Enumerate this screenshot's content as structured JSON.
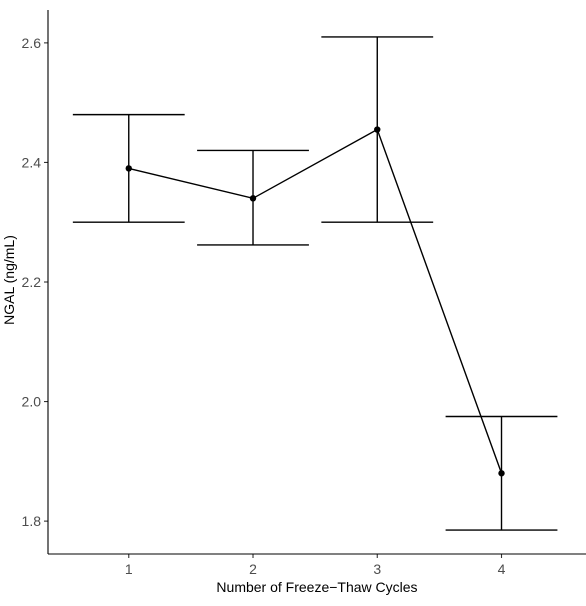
{
  "chart_data": {
    "type": "line",
    "xlabel": "Number of Freeze−Thaw Cycles",
    "ylabel": "NGAL (ng/mL)",
    "x": [
      1,
      2,
      3,
      4
    ],
    "xticks": [
      "1",
      "2",
      "3",
      "4"
    ],
    "xlim": [
      0.35,
      4.68
    ],
    "ylim": [
      1.745,
      2.655
    ],
    "yticks": [
      "1.8",
      "2.0",
      "2.2",
      "2.4",
      "2.6"
    ],
    "ytick_values": [
      1.8,
      2.0,
      2.2,
      2.4,
      2.6
    ],
    "series": [
      {
        "values": [
          2.39,
          2.34,
          2.455,
          1.88
        ],
        "error_lower": [
          2.3,
          2.262,
          2.3,
          1.785
        ],
        "error_upper": [
          2.48,
          2.42,
          2.61,
          1.975
        ]
      }
    ],
    "grid": false,
    "line_color": "#000000"
  }
}
